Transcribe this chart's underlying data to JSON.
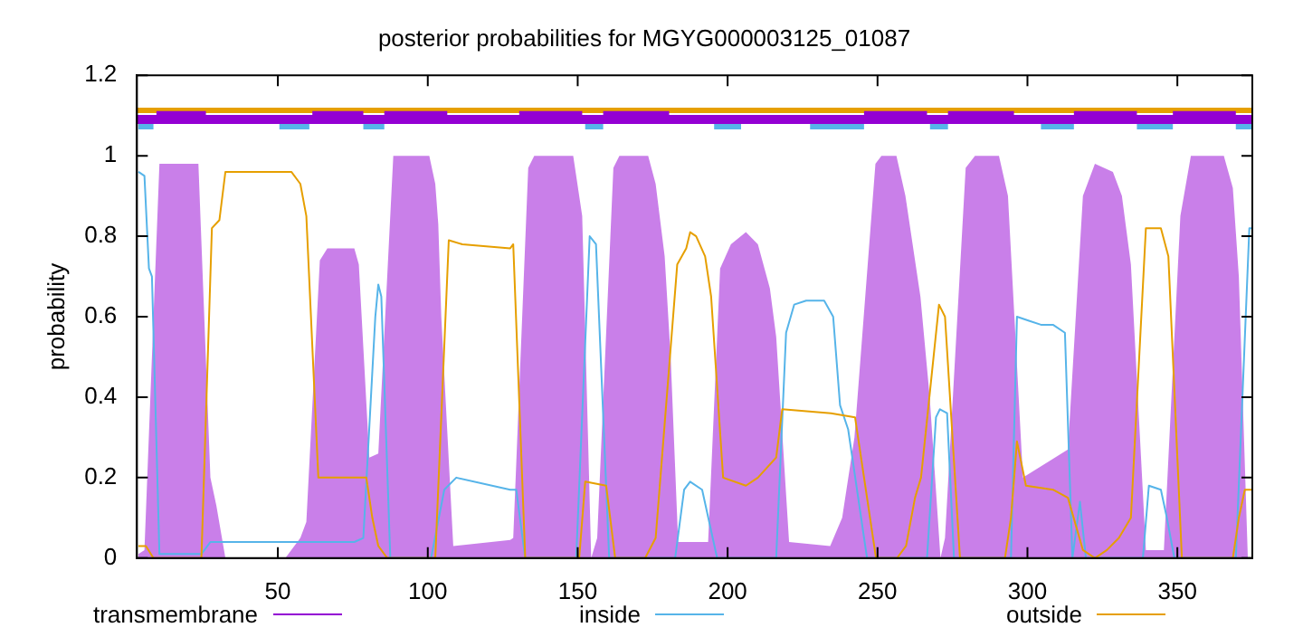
{
  "chart_data": {
    "type": "line",
    "title": "posterior probabilities for MGYG000003125_01087",
    "ylabel": "probability",
    "xlim": [
      3,
      375
    ],
    "xticks": [
      50,
      100,
      150,
      200,
      250,
      300,
      350
    ],
    "ylim": [
      0,
      1.2
    ],
    "yticks": [
      0,
      0.2,
      0.4,
      0.6,
      0.8,
      1,
      1.2
    ],
    "grid": false,
    "legend": "bottom",
    "marker": "none",
    "line_style": "solid",
    "series": [
      {
        "name": "transmembrane",
        "type": "area",
        "color": "#9400d3",
        "x": [
          3.5,
          5.5,
          10.5,
          23.5,
          27.5,
          29.5,
          32.5,
          52.5,
          57.5,
          59.5,
          64,
          66.5,
          75.5,
          77,
          80.5,
          83.5,
          88.5,
          100.5,
          102.5,
          103.5,
          104.5,
          108.5,
          127.5,
          128.5,
          133.5,
          135.5,
          148.5,
          150.5,
          151.5,
          154.5,
          156.5,
          161.9,
          163.9,
          173.5,
          176,
          179,
          181,
          183.5,
          193.5,
          197.5,
          201.1,
          206.1,
          210.1,
          214.1,
          216.2,
          220.5,
          234.2,
          238.2,
          242.3,
          249.3,
          251.3,
          256.3,
          259.3,
          264.3,
          267.4,
          271,
          272.5,
          279.4,
          282.5,
          290.5,
          293.5,
          298.5,
          313.5,
          318.5,
          322.5,
          328.5,
          331.5,
          334.5,
          339.5,
          345.5,
          351,
          354.5,
          365.5,
          368.5,
          370.5,
          373.5
        ],
        "values": [
          0.01,
          0.02,
          0.98,
          0.98,
          0.2,
          0.13,
          0,
          0,
          0.05,
          0.09,
          0.74,
          0.77,
          0.77,
          0.73,
          0.25,
          0.26,
          1,
          1,
          0.93,
          0.83,
          0.6,
          0.03,
          0.045,
          0.05,
          0.97,
          1,
          1,
          0.9,
          0.85,
          0,
          0.05,
          0.97,
          1,
          1,
          0.93,
          0.75,
          0.5,
          0.04,
          0.04,
          0.72,
          0.78,
          0.81,
          0.78,
          0.67,
          0.55,
          0.04,
          0.03,
          0.1,
          0.3,
          0.98,
          1,
          1,
          0.9,
          0.65,
          0.4,
          0,
          0.05,
          0.97,
          1,
          1,
          0.9,
          0.2,
          0.27,
          0.9,
          0.98,
          0.96,
          0.9,
          0.73,
          0.02,
          0.02,
          0.85,
          1,
          1,
          0.92,
          0.7,
          0
        ]
      },
      {
        "name": "inside",
        "color": "#56b4e9",
        "x": [
          3.5,
          5.5,
          7,
          8,
          10.5,
          24.5,
          27.5,
          75.5,
          78.5,
          82.5,
          83.5,
          84.5,
          87.5,
          101.1,
          105.5,
          109.5,
          127.5,
          129.5,
          132.5,
          149.5,
          154,
          156.1,
          160.5,
          182.5,
          185.5,
          187.5,
          191.5,
          196.5,
          216.2,
          219.5,
          222.2,
          226.2,
          232.2,
          235.2,
          237.5,
          240.2,
          246.5,
          266.5,
          269.5,
          270.8,
          273.2,
          275.5,
          294.5,
          296.5,
          300.5,
          304.5,
          308.5,
          312.5,
          315,
          317.5,
          319.5,
          338.5,
          340.5,
          344.5,
          346.5,
          349,
          369.5,
          374,
          375
        ],
        "values": [
          0.96,
          0.95,
          0.72,
          0.7,
          0.01,
          0.01,
          0.04,
          0.04,
          0.05,
          0.6,
          0.68,
          0.65,
          0,
          0,
          0.17,
          0.2,
          0.17,
          0.17,
          0,
          0,
          0.8,
          0.78,
          0,
          0,
          0.17,
          0.19,
          0.17,
          0,
          0,
          0.56,
          0.63,
          0.64,
          0.64,
          0.6,
          0.38,
          0.32,
          0,
          0,
          0.35,
          0.37,
          0.36,
          0,
          0,
          0.6,
          0.59,
          0.58,
          0.58,
          0.56,
          0,
          0.14,
          0,
          0,
          0.18,
          0.17,
          0.1,
          0,
          0,
          0.82,
          0.82
        ]
      },
      {
        "name": "outside",
        "color": "#e69f00",
        "x": [
          3.5,
          6,
          8.5,
          24.5,
          28,
          30.5,
          32.5,
          54.5,
          57.5,
          59.5,
          63.5,
          79.5,
          81.5,
          83.5,
          86.5,
          102.5,
          107,
          111.5,
          127.5,
          128.5,
          132.5,
          150.5,
          152.5,
          159.5,
          162.5,
          172.5,
          176,
          183.2,
          186.2,
          187.5,
          189.5,
          192.5,
          194.5,
          198.5,
          206.1,
          210.1,
          216.2,
          218.2,
          234.5,
          242.5,
          249.5,
          256.5,
          259.5,
          262.5,
          264.5,
          270.5,
          272.5,
          277.5,
          292.5,
          294.5,
          296.5,
          299.5,
          308.5,
          313.5,
          318.5,
          322.5,
          326.5,
          330.5,
          334.5,
          339.5,
          344.5,
          347,
          351.5,
          368.5,
          370.5,
          372.5,
          375
        ],
        "values": [
          0.03,
          0.03,
          0,
          0,
          0.82,
          0.84,
          0.96,
          0.96,
          0.93,
          0.85,
          0.2,
          0.2,
          0.1,
          0.03,
          0,
          0,
          0.79,
          0.78,
          0.77,
          0.78,
          0,
          0,
          0.19,
          0.18,
          0,
          0,
          0.05,
          0.73,
          0.77,
          0.81,
          0.8,
          0.75,
          0.65,
          0.2,
          0.18,
          0.2,
          0.25,
          0.37,
          0.36,
          0.35,
          0,
          0,
          0.03,
          0.15,
          0.2,
          0.63,
          0.6,
          0,
          0,
          0.1,
          0.29,
          0.18,
          0.17,
          0.15,
          0.02,
          0,
          0.02,
          0.05,
          0.1,
          0.82,
          0.82,
          0.75,
          0,
          0,
          0.1,
          0.17,
          0.17
        ]
      },
      {
        "color": "#e69f00",
        "x": [
          3,
          375
        ],
        "values": [
          1.113,
          1.113
        ]
      },
      {
        "color": "#9400d3",
        "x": [
          3,
          375
        ],
        "values": [
          1.09,
          1.09
        ]
      },
      {
        "color": "#9400d3",
        "x": [
          9.5,
          26,
          26.5,
          61.5,
          78.5,
          79,
          85.5,
          106.5,
          107,
          130.5,
          151.5,
          152,
          158.5,
          180.5,
          181,
          245.5,
          266.5,
          267,
          273.5,
          295.5,
          296,
          315.5,
          336.5,
          337,
          348.5,
          369.5
        ],
        "values": [
          1.1,
          1.1,
          null,
          1.1,
          1.1,
          null,
          1.1,
          1.1,
          null,
          1.1,
          1.1,
          null,
          1.1,
          1.1,
          null,
          1.1,
          1.1,
          null,
          1.1,
          1.1,
          null,
          1.1,
          1.1,
          null,
          1.1,
          1.1
        ]
      },
      {
        "color": "#56b4e9",
        "x": [
          3.5,
          8.5,
          9,
          50.5,
          60.5,
          61,
          78.5,
          85.5,
          86,
          152.5,
          158.5,
          159,
          195.5,
          204.5,
          205,
          227.5,
          245.5,
          246,
          267.5,
          273.5,
          274,
          304.5,
          315.5,
          316,
          336.5,
          348.5,
          349,
          369.5,
          375
        ],
        "values": [
          1.072,
          1.072,
          null,
          1.072,
          1.072,
          null,
          1.072,
          1.072,
          null,
          1.072,
          1.072,
          null,
          1.072,
          1.072,
          null,
          1.072,
          1.072,
          null,
          1.072,
          1.072,
          null,
          1.072,
          1.072,
          null,
          1.072,
          1.072,
          null,
          1.072,
          1.072
        ]
      }
    ]
  }
}
